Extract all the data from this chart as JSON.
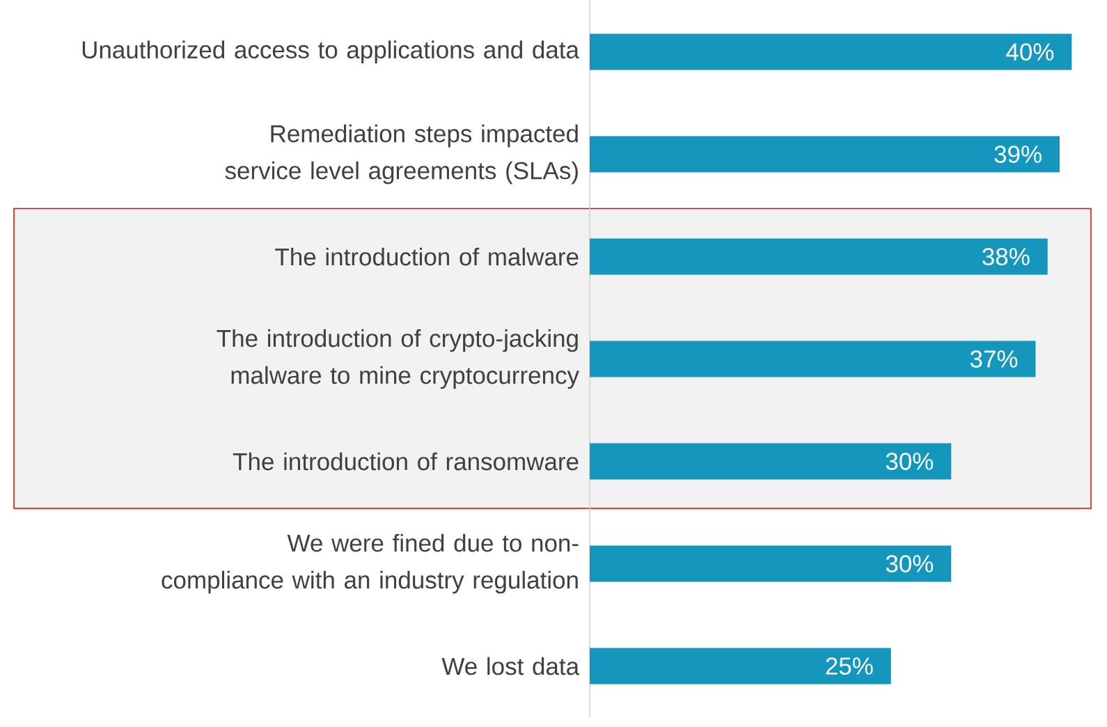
{
  "chart_data": {
    "type": "bar",
    "orientation": "horizontal",
    "categories": [
      "Unauthorized access to applications and data",
      "Remediation steps impacted service level agreements (SLAs)",
      "The introduction of malware",
      "The introduction of crypto-jacking malware to mine cryptocurrency",
      "The introduction of ransomware",
      "We were fined due to non-compliance with an industry regulation",
      "We lost data"
    ],
    "values": [
      40,
      39,
      38,
      37,
      30,
      30,
      25
    ],
    "value_labels": [
      "40%",
      "39%",
      "38%",
      "37%",
      "30%",
      "30%",
      "25%"
    ],
    "color": "#1596bd",
    "bands": [
      {
        "axis": "y",
        "from": "The introduction of malware",
        "to": "The introduction of ransomware",
        "color": "#f2f2f2"
      }
    ]
  }
}
